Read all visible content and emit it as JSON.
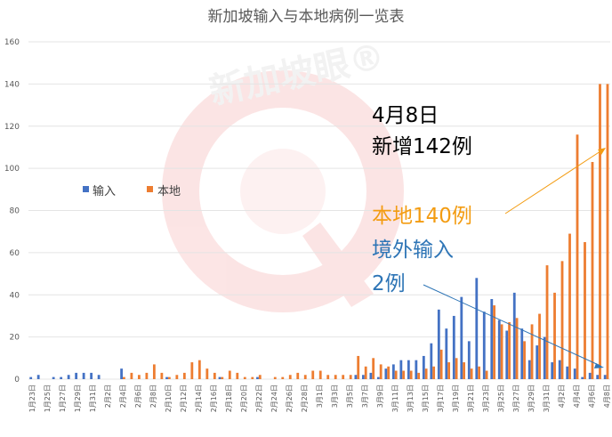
{
  "chart_data": {
    "type": "bar",
    "title": "新加坡输入与本地病例一览表",
    "xlabel": "",
    "ylabel": "",
    "ylim": [
      0,
      160
    ],
    "yticks": [
      0,
      20,
      40,
      60,
      80,
      100,
      120,
      140,
      160
    ],
    "grid": true,
    "legend_position": "left-middle",
    "watermark": "新加坡眼®",
    "categories": [
      "1月23日",
      "1月24日",
      "1月25日",
      "1月26日",
      "1月27日",
      "1月28日",
      "1月29日",
      "1月30日",
      "1月31日",
      "2月1日",
      "2月2日",
      "2月3日",
      "2月4日",
      "2月5日",
      "2月6日",
      "2月7日",
      "2月8日",
      "2月9日",
      "2月10日",
      "2月11日",
      "2月12日",
      "2月13日",
      "2月14日",
      "2月15日",
      "2月16日",
      "2月17日",
      "2月18日",
      "2月19日",
      "2月20日",
      "2月21日",
      "2月22日",
      "2月23日",
      "2月24日",
      "2月25日",
      "2月26日",
      "2月27日",
      "2月28日",
      "2月29日",
      "3月1日",
      "3月2日",
      "3月3日",
      "3月4日",
      "3月5日",
      "3月6日",
      "3月7日",
      "3月8日",
      "3月9日",
      "3月10日",
      "3月11日",
      "3月12日",
      "3月13日",
      "3月14日",
      "3月15日",
      "3月16日",
      "3月17日",
      "3月18日",
      "3月19日",
      "3月20日",
      "3月21日",
      "3月22日",
      "3月23日",
      "3月24日",
      "3月25日",
      "3月26日",
      "3月27日",
      "3月28日",
      "3月29日",
      "3月30日",
      "3月31日",
      "4月1日",
      "4月2日",
      "4月3日",
      "4月4日",
      "4月5日",
      "4月6日",
      "4月7日",
      "4月8日"
    ],
    "tick_labels": [
      "1月23日",
      "1月25日",
      "1月27日",
      "1月29日",
      "1月31日",
      "2月2日",
      "2月4日",
      "2月6日",
      "2月8日",
      "2月10日",
      "2月12日",
      "2月14日",
      "2月16日",
      "2月18日",
      "2月20日",
      "2月22日",
      "2月24日",
      "2月26日",
      "2月28日",
      "3月1日",
      "3月3日",
      "3月5日",
      "3月7日",
      "3月9日",
      "3月11日",
      "3月13日",
      "3月15日",
      "3月17日",
      "3月19日",
      "3月21日",
      "3月23日",
      "3月25日",
      "3月27日",
      "3月29日",
      "3月31日",
      "4月2日",
      "4月4日",
      "4月6日",
      "4月8日"
    ],
    "series": [
      {
        "name": "输入",
        "color": "#4472C4",
        "values": [
          1,
          2,
          0,
          1,
          1,
          2,
          3,
          3,
          3,
          2,
          0,
          0,
          5,
          0,
          0,
          0,
          0,
          0,
          1,
          0,
          0,
          0,
          0,
          0,
          0,
          1,
          0,
          0,
          0,
          0,
          1,
          0,
          0,
          0,
          0,
          0,
          0,
          0,
          0,
          0,
          0,
          0,
          0,
          2,
          2,
          3,
          1,
          5,
          7,
          9,
          9,
          9,
          11,
          17,
          33,
          24,
          30,
          39,
          18,
          48,
          32,
          38,
          28,
          23,
          41,
          24,
          9,
          16,
          20,
          8,
          9,
          6,
          5,
          1,
          3,
          2,
          2
        ]
      },
      {
        "name": "本地",
        "color": "#ED7D31",
        "values": [
          0,
          0,
          0,
          0,
          0,
          0,
          0,
          0,
          0,
          0,
          0,
          0,
          1,
          3,
          2,
          3,
          7,
          3,
          1,
          2,
          3,
          8,
          9,
          5,
          3,
          1,
          4,
          3,
          1,
          1,
          2,
          0,
          1,
          1,
          2,
          3,
          2,
          4,
          4,
          2,
          2,
          2,
          2,
          11,
          6,
          10,
          7,
          6,
          4,
          4,
          4,
          3,
          5,
          6,
          14,
          8,
          10,
          8,
          5,
          6,
          4,
          35,
          26,
          27,
          29,
          18,
          26,
          31,
          54,
          41,
          56,
          69,
          116,
          65,
          103,
          140,
          140
        ]
      }
    ],
    "annotations": [
      {
        "text": "4月8日",
        "color": "#000000"
      },
      {
        "text": "新增142例",
        "color": "#000000"
      },
      {
        "text": "本地140例",
        "color": "#F39C12"
      },
      {
        "text": "境外输入",
        "color": "#2E75B6"
      },
      {
        "text": "2例",
        "color": "#2E75B6"
      }
    ]
  }
}
